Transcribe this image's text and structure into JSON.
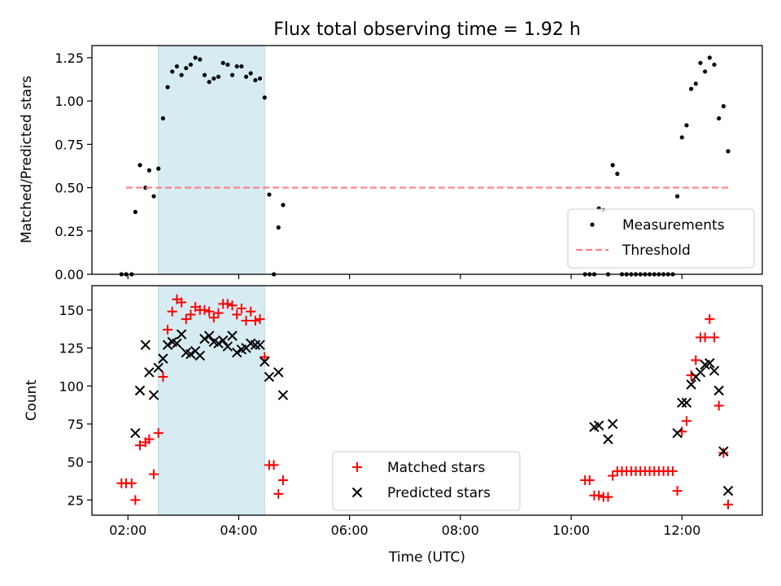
{
  "chart_data": [
    {
      "type": "scatter",
      "title": "Flux total observing time = 1.92 h",
      "xlabel": "",
      "ylabel": "Matched/Predicted stars",
      "xlim": [
        "01:21",
        "13:27"
      ],
      "ylim": [
        0,
        1.32
      ],
      "xticks": [
        "02:00",
        "04:00",
        "06:00",
        "08:00",
        "10:00",
        "12:00"
      ],
      "yticks": [
        "0.00",
        "0.25",
        "0.50",
        "0.75",
        "1.00",
        "1.25"
      ],
      "ytick_values": [
        0,
        0.25,
        0.5,
        0.75,
        1.0,
        1.25
      ],
      "highlight_span": {
        "start": "02:33",
        "end": "04:28",
        "color": "#add8e6"
      },
      "legend": {
        "location": "lower-right",
        "entries": [
          "Measurements",
          "Threshold"
        ]
      },
      "series": [
        {
          "name": "Measurements",
          "marker": "dot",
          "color": "#000000",
          "points": [
            [
              "01:53",
              0
            ],
            [
              "01:58",
              0
            ],
            [
              "02:04",
              0
            ],
            [
              "02:08",
              0.36
            ],
            [
              "02:13",
              0.63
            ],
            [
              "02:19",
              0.5
            ],
            [
              "02:23",
              0.6
            ],
            [
              "02:28",
              0.45
            ],
            [
              "02:33",
              0.61
            ],
            [
              "02:38",
              0.9
            ],
            [
              "02:43",
              1.08
            ],
            [
              "02:48",
              1.17
            ],
            [
              "02:53",
              1.2
            ],
            [
              "02:58",
              1.15
            ],
            [
              "03:03",
              1.19
            ],
            [
              "03:08",
              1.21
            ],
            [
              "03:13",
              1.25
            ],
            [
              "03:18",
              1.24
            ],
            [
              "03:23",
              1.15
            ],
            [
              "03:28",
              1.11
            ],
            [
              "03:33",
              1.13
            ],
            [
              "03:38",
              1.14
            ],
            [
              "03:43",
              1.22
            ],
            [
              "03:48",
              1.21
            ],
            [
              "03:53",
              1.15
            ],
            [
              "03:58",
              1.2
            ],
            [
              "04:03",
              1.2
            ],
            [
              "04:08",
              1.14
            ],
            [
              "04:13",
              1.16
            ],
            [
              "04:18",
              1.12
            ],
            [
              "04:23",
              1.13
            ],
            [
              "04:28",
              1.02
            ],
            [
              "04:33",
              0.46
            ],
            [
              "04:38",
              0
            ],
            [
              "04:43",
              0.27
            ],
            [
              "04:48",
              0.4
            ],
            [
              "10:15",
              0
            ],
            [
              "10:20",
              0
            ],
            [
              "10:25",
              0
            ],
            [
              "10:30",
              0.38
            ],
            [
              "10:35",
              0.37
            ],
            [
              "10:40",
              0
            ],
            [
              "10:45",
              0.63
            ],
            [
              "10:50",
              0.58
            ],
            [
              "10:55",
              0
            ],
            [
              "11:00",
              0
            ],
            [
              "11:05",
              0
            ],
            [
              "11:10",
              0
            ],
            [
              "11:15",
              0
            ],
            [
              "11:20",
              0
            ],
            [
              "11:25",
              0
            ],
            [
              "11:30",
              0
            ],
            [
              "11:35",
              0
            ],
            [
              "11:40",
              0
            ],
            [
              "11:45",
              0
            ],
            [
              "11:50",
              0
            ],
            [
              "11:55",
              0.45
            ],
            [
              "12:00",
              0.79
            ],
            [
              "12:05",
              0.86
            ],
            [
              "12:10",
              1.07
            ],
            [
              "12:15",
              1.1
            ],
            [
              "12:20",
              1.22
            ],
            [
              "12:25",
              1.17
            ],
            [
              "12:30",
              1.25
            ],
            [
              "12:35",
              1.21
            ],
            [
              "12:40",
              0.9
            ],
            [
              "12:45",
              0.97
            ],
            [
              "12:50",
              0.71
            ]
          ]
        },
        {
          "name": "Threshold",
          "style": "dashed",
          "color": "#ff8080",
          "points": [
            [
              "01:58",
              0.5
            ],
            [
              "12:50",
              0.5
            ]
          ]
        }
      ]
    },
    {
      "type": "scatter",
      "title": "",
      "xlabel": "Time (UTC)",
      "ylabel": "Count",
      "xlim": [
        "01:21",
        "13:27"
      ],
      "ylim": [
        15,
        166
      ],
      "xticks": [
        "02:00",
        "04:00",
        "06:00",
        "08:00",
        "10:00",
        "12:00"
      ],
      "yticks": [
        "25",
        "50",
        "75",
        "100",
        "125",
        "150"
      ],
      "ytick_values": [
        25,
        50,
        75,
        100,
        125,
        150
      ],
      "highlight_span": {
        "start": "02:33",
        "end": "04:28",
        "color": "#add8e6"
      },
      "legend": {
        "location": "lower-center",
        "entries": [
          "Matched stars",
          "Predicted stars"
        ]
      },
      "series": [
        {
          "name": "Matched stars",
          "marker": "plus",
          "color": "#ff0000",
          "points": [
            [
              "01:53",
              36
            ],
            [
              "01:58",
              36
            ],
            [
              "02:04",
              36
            ],
            [
              "02:08",
              25
            ],
            [
              "02:13",
              61
            ],
            [
              "02:19",
              63
            ],
            [
              "02:23",
              65
            ],
            [
              "02:28",
              42
            ],
            [
              "02:33",
              69
            ],
            [
              "02:38",
              106
            ],
            [
              "02:43",
              137
            ],
            [
              "02:48",
              149
            ],
            [
              "02:53",
              157
            ],
            [
              "02:58",
              155
            ],
            [
              "03:03",
              144
            ],
            [
              "03:08",
              147
            ],
            [
              "03:13",
              152
            ],
            [
              "03:18",
              150
            ],
            [
              "03:23",
              150
            ],
            [
              "03:28",
              149
            ],
            [
              "03:33",
              145
            ],
            [
              "03:38",
              148
            ],
            [
              "03:43",
              154
            ],
            [
              "03:48",
              154
            ],
            [
              "03:53",
              153
            ],
            [
              "03:58",
              147
            ],
            [
              "04:03",
              151
            ],
            [
              "04:08",
              143
            ],
            [
              "04:13",
              149
            ],
            [
              "04:18",
              143
            ],
            [
              "04:23",
              144
            ],
            [
              "04:28",
              119
            ],
            [
              "04:33",
              48
            ],
            [
              "04:38",
              48
            ],
            [
              "04:43",
              29
            ],
            [
              "04:48",
              38
            ],
            [
              "10:15",
              38
            ],
            [
              "10:20",
              38
            ],
            [
              "10:25",
              28
            ],
            [
              "10:30",
              28
            ],
            [
              "10:35",
              27
            ],
            [
              "10:40",
              27
            ],
            [
              "10:45",
              41
            ],
            [
              "10:50",
              44
            ],
            [
              "10:55",
              44
            ],
            [
              "11:00",
              44
            ],
            [
              "11:05",
              44
            ],
            [
              "11:10",
              44
            ],
            [
              "11:15",
              44
            ],
            [
              "11:20",
              44
            ],
            [
              "11:25",
              44
            ],
            [
              "11:30",
              44
            ],
            [
              "11:35",
              44
            ],
            [
              "11:40",
              44
            ],
            [
              "11:45",
              44
            ],
            [
              "11:50",
              44
            ],
            [
              "11:55",
              31
            ],
            [
              "12:00",
              70
            ],
            [
              "12:05",
              77
            ],
            [
              "12:10",
              107
            ],
            [
              "12:15",
              117
            ],
            [
              "12:20",
              132
            ],
            [
              "12:25",
              132
            ],
            [
              "12:30",
              144
            ],
            [
              "12:35",
              132
            ],
            [
              "12:40",
              87
            ],
            [
              "12:45",
              56
            ],
            [
              "12:50",
              22
            ]
          ]
        },
        {
          "name": "Predicted stars",
          "marker": "x",
          "color": "#000000",
          "points": [
            [
              "02:08",
              69
            ],
            [
              "02:13",
              97
            ],
            [
              "02:19",
              127
            ],
            [
              "02:23",
              109
            ],
            [
              "02:28",
              94
            ],
            [
              "02:33",
              112
            ],
            [
              "02:38",
              118
            ],
            [
              "02:43",
              127
            ],
            [
              "02:48",
              129
            ],
            [
              "02:53",
              128
            ],
            [
              "02:58",
              134
            ],
            [
              "03:03",
              122
            ],
            [
              "03:08",
              121
            ],
            [
              "03:13",
              123
            ],
            [
              "03:18",
              120
            ],
            [
              "03:23",
              131
            ],
            [
              "03:28",
              133
            ],
            [
              "03:33",
              129
            ],
            [
              "03:38",
              128
            ],
            [
              "03:43",
              130
            ],
            [
              "03:48",
              126
            ],
            [
              "03:53",
              133
            ],
            [
              "03:58",
              122
            ],
            [
              "04:03",
              124
            ],
            [
              "04:08",
              125
            ],
            [
              "04:13",
              128
            ],
            [
              "04:18",
              127
            ],
            [
              "04:23",
              127
            ],
            [
              "04:28",
              116
            ],
            [
              "04:33",
              106
            ],
            [
              "04:43",
              109
            ],
            [
              "04:48",
              94
            ],
            [
              "10:25",
              73
            ],
            [
              "10:30",
              74
            ],
            [
              "10:40",
              65
            ],
            [
              "10:45",
              75
            ],
            [
              "11:55",
              69
            ],
            [
              "12:00",
              89
            ],
            [
              "12:05",
              89
            ],
            [
              "12:10",
              101
            ],
            [
              "12:15",
              106
            ],
            [
              "12:20",
              109
            ],
            [
              "12:25",
              114
            ],
            [
              "12:30",
              115
            ],
            [
              "12:35",
              110
            ],
            [
              "12:40",
              97
            ],
            [
              "12:45",
              57
            ],
            [
              "12:50",
              31
            ]
          ]
        }
      ]
    }
  ]
}
